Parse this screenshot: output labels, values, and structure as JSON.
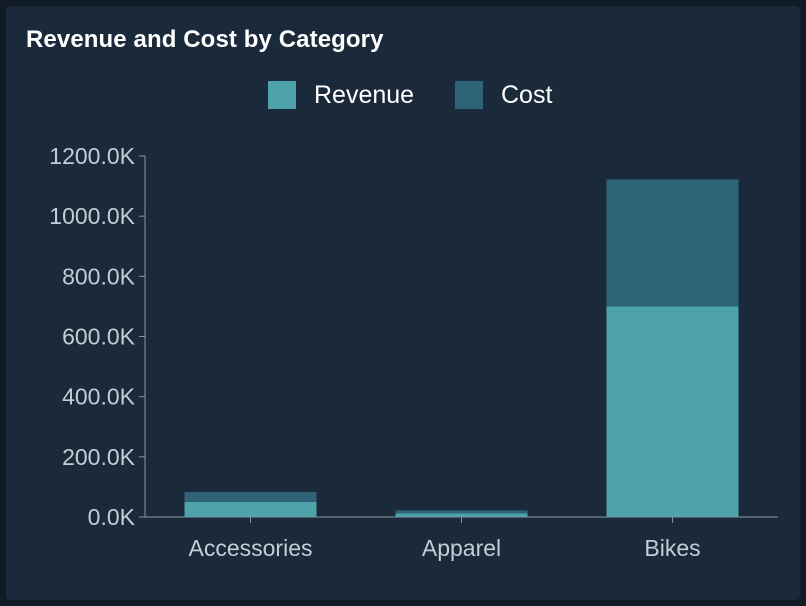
{
  "chart_data": {
    "type": "bar",
    "stacked": true,
    "title": "Revenue and Cost by Category",
    "categories": [
      "Accessories",
      "Apparel",
      "Bikes"
    ],
    "series": [
      {
        "name": "Revenue",
        "color": "#4ea3ab",
        "values": [
          50,
          12,
          700
        ]
      },
      {
        "name": "Cost",
        "color": "#2f6478",
        "values": [
          33,
          10,
          422
        ]
      }
    ],
    "yticks": [
      0,
      200,
      400,
      600,
      800,
      1000,
      1200
    ],
    "ytick_labels": [
      "0.0K",
      "200.0K",
      "400.0K",
      "600.0K",
      "800.0K",
      "1000.0K",
      "1200.0K"
    ],
    "ylim": [
      0,
      1200
    ],
    "xlabel": "",
    "ylabel": "",
    "legend_position": "top-center",
    "colors": {
      "background": "#1b2a3a",
      "axis": "#8a96a2",
      "text": "#c4ccd4"
    }
  }
}
